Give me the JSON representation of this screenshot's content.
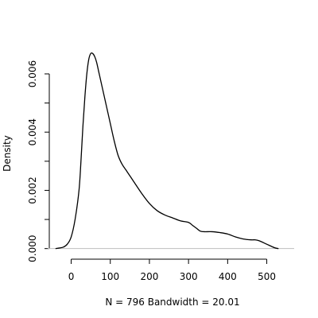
{
  "chart_data": {
    "type": "line",
    "title": "",
    "xlabel": "N = 796   Bandwidth = 20.01",
    "ylabel": "Density",
    "xlim": [
      -60,
      570
    ],
    "ylim": [
      -0.0002,
      0.0069
    ],
    "x_ticks": [
      0,
      100,
      200,
      300,
      400,
      500
    ],
    "x_tick_labels": [
      "0",
      "100",
      "200",
      "300",
      "400",
      "500"
    ],
    "y_ticks": [
      0.0,
      0.001,
      0.002,
      0.003,
      0.004,
      0.005,
      0.006
    ],
    "y_tick_labels": [
      "0.000",
      "",
      "0.002",
      "",
      "0.004",
      "",
      "0.006"
    ],
    "baseline": 0,
    "grid": false,
    "series": [
      {
        "x": [
          -40,
          -30,
          -20,
          -10,
          0,
          10,
          20,
          25,
          30,
          35,
          40,
          45,
          50,
          55,
          60,
          65,
          70,
          75,
          80,
          90,
          100,
          110,
          120,
          130,
          140,
          150,
          160,
          180,
          200,
          220,
          240,
          260,
          280,
          300,
          310,
          320,
          330,
          340,
          360,
          380,
          400,
          420,
          440,
          460,
          470,
          480,
          500,
          520,
          530
        ],
        "y": [
          0.0,
          2e-05,
          5e-05,
          0.00015,
          0.0004,
          0.001,
          0.002,
          0.003,
          0.0042,
          0.0052,
          0.006,
          0.0065,
          0.0067,
          0.0067,
          0.0066,
          0.0064,
          0.0061,
          0.0058,
          0.0055,
          0.0049,
          0.0043,
          0.0037,
          0.0032,
          0.0029,
          0.0027,
          0.0025,
          0.0023,
          0.0019,
          0.00155,
          0.0013,
          0.00115,
          0.00105,
          0.00095,
          0.0009,
          0.0008,
          0.0007,
          0.0006,
          0.00058,
          0.00058,
          0.00055,
          0.0005,
          0.0004,
          0.00033,
          0.0003,
          0.0003,
          0.00027,
          0.00015,
          3e-05,
          0.0
        ]
      }
    ]
  }
}
